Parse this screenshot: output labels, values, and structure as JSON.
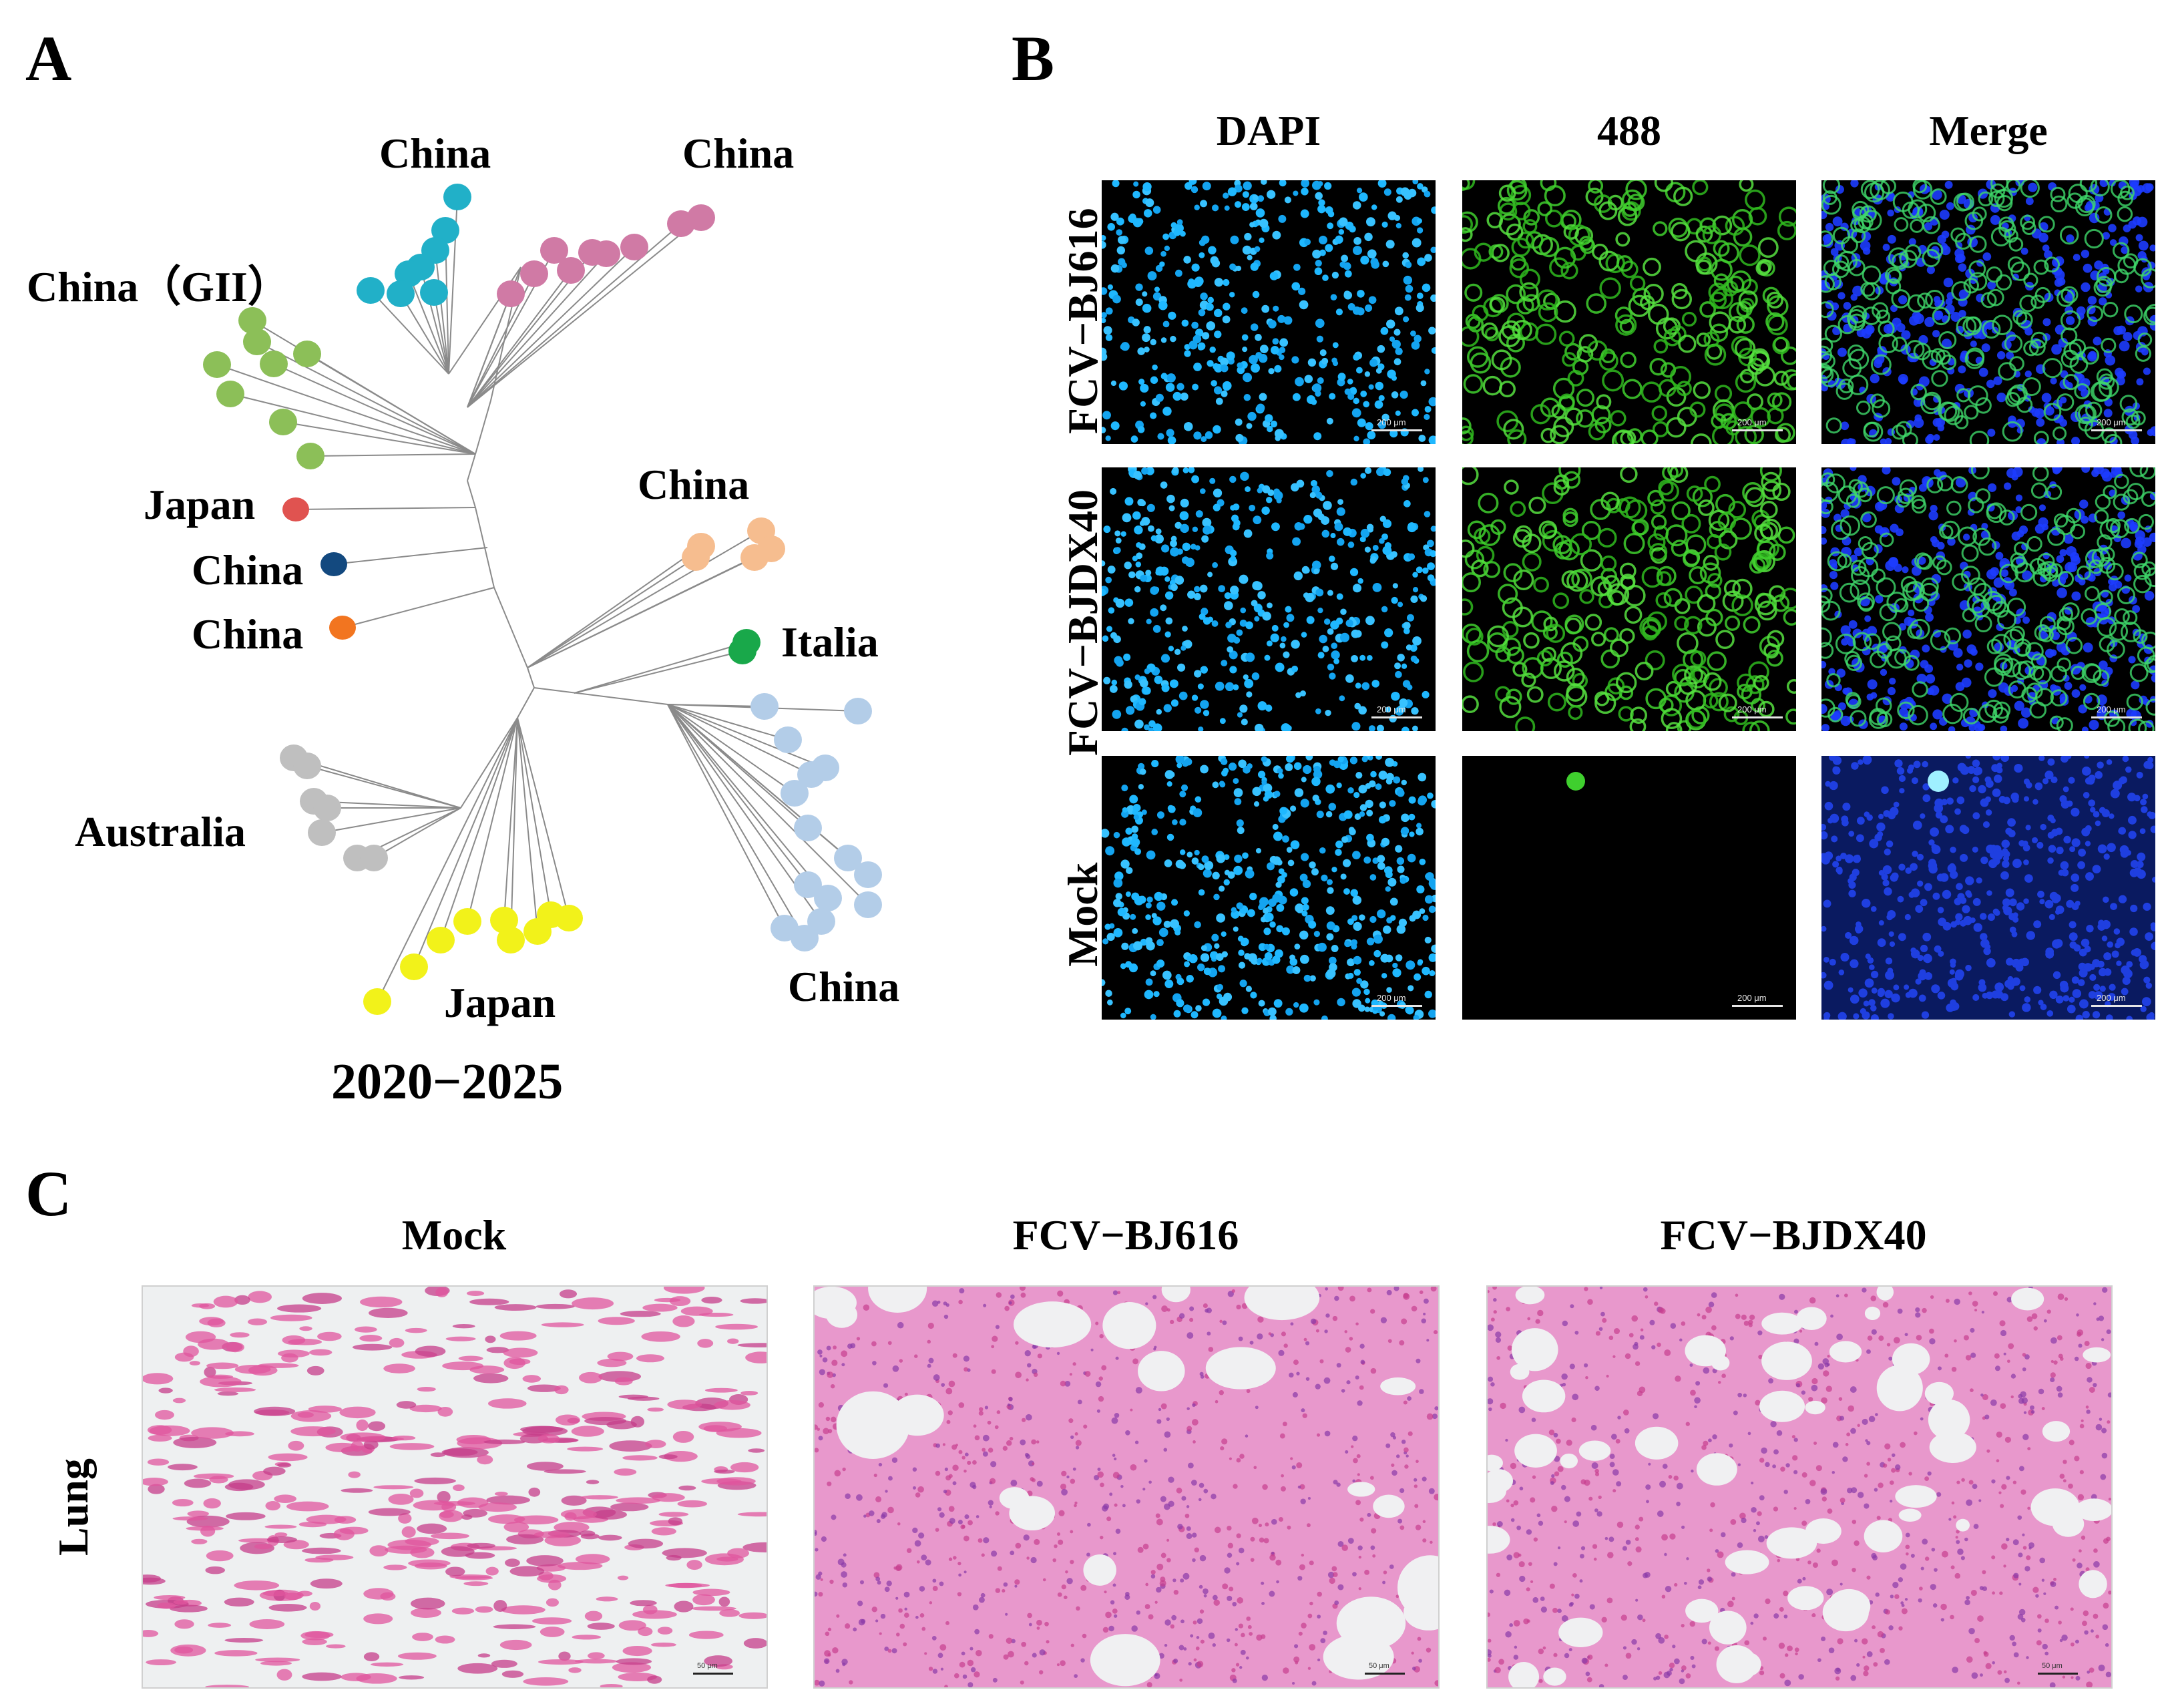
{
  "panels": {
    "a": {
      "letter": "A",
      "period": "2020−2025",
      "clades": [
        {
          "label": "China",
          "color": "#21b0c8"
        },
        {
          "label": "China",
          "color": "#d07aa5"
        },
        {
          "label": "China（GII）",
          "color": "#8cbf58"
        },
        {
          "label": "Japan",
          "color": "#e05350"
        },
        {
          "label": "China",
          "color": "#13497f"
        },
        {
          "label": "China",
          "color": "#f27520"
        },
        {
          "label": "China",
          "color": "#f6bd8f"
        },
        {
          "label": "Italia",
          "color": "#19a84a"
        },
        {
          "label": "Australia",
          "color": "#bfbfbf"
        },
        {
          "label": "Japan",
          "color": "#f2f21a"
        },
        {
          "label": "China",
          "color": "#b3cde8"
        }
      ]
    },
    "b": {
      "letter": "B",
      "columns": [
        "DAPI",
        "488",
        "Merge"
      ],
      "rows": [
        "FCV−BJ616",
        "FCV−BJDX40",
        "Mock"
      ],
      "scale_bar": "200 μm"
    },
    "c": {
      "letter": "C",
      "columns": [
        "Mock",
        "FCV−BJ616",
        "FCV−BJDX40"
      ],
      "row": "Lung",
      "scale_bar": "50 μm"
    }
  }
}
